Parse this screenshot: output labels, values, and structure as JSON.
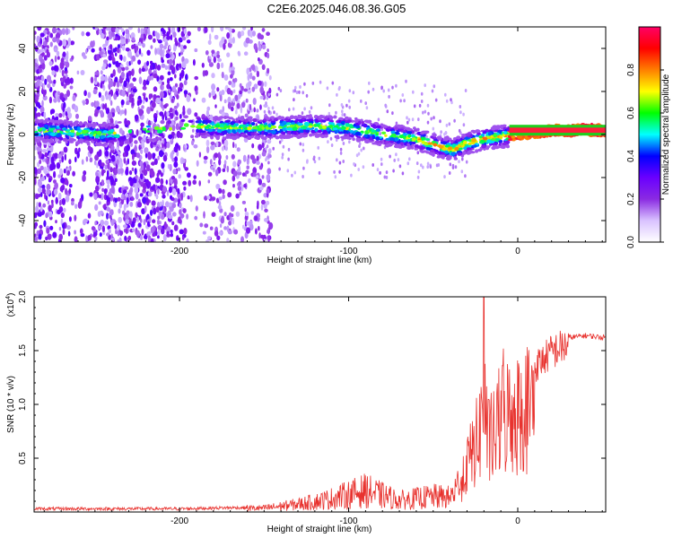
{
  "page": {
    "title": "C2E6.2025.046.08.36.G05"
  },
  "chart_data": [
    {
      "type": "heatmap",
      "xlabel": "Height of straight line (km)",
      "ylabel": "Frequency (Hz)",
      "xlim": [
        -286,
        52
      ],
      "ylim": [
        -50,
        50
      ],
      "xticks": [
        -200,
        -100,
        0
      ],
      "yticks": [
        -40,
        -20,
        0,
        20,
        40
      ],
      "colorbar": {
        "label": "Normalized spectral amplitude",
        "range": [
          0,
          1
        ],
        "ticks": [
          "0.0",
          "0.2",
          "0.4",
          "0.6",
          "0.8"
        ],
        "colors": [
          "#ffffff",
          "#d9c2ff",
          "#8a2be2",
          "#6a00ff",
          "#0000ff",
          "#00ffff",
          "#00ff00",
          "#ffff00",
          "#ff7f00",
          "#ff0000",
          "#ff0066"
        ]
      },
      "ridge": {
        "x": [
          -286,
          -260,
          -245,
          -190,
          -170,
          -150,
          -120,
          -100,
          -80,
          -60,
          -45,
          -38,
          -30,
          -20,
          -10,
          0,
          20,
          52
        ],
        "frequency": [
          2,
          1,
          0,
          4,
          3,
          3,
          4,
          3,
          0,
          -2,
          -6,
          -7,
          -4,
          -2,
          -1,
          0,
          2,
          2
        ]
      }
    },
    {
      "type": "line",
      "xlabel": "Height of straight line (km)",
      "ylabel": "SNR (10 * v/v)",
      "multiplier_label": "(x10",
      "multiplier_exp": "4",
      "multiplier_close": ")",
      "xlim": [
        -286,
        52
      ],
      "ylim": [
        0,
        2.0
      ],
      "xticks": [
        -200,
        -100,
        0
      ],
      "yticks": [
        "0.5",
        "1.0",
        "1.5",
        "2.0"
      ],
      "color": "#e8322e",
      "series": [
        {
          "x": [
            -286,
            -240,
            -200,
            -170,
            -150,
            -130,
            -115,
            -100,
            -90,
            -80,
            -70,
            -60,
            -50,
            -40,
            -34,
            -30,
            -25,
            -22,
            -20,
            -18,
            -15,
            -10,
            -5,
            0,
            10,
            20,
            30,
            40,
            52
          ],
          "y": [
            0.03,
            0.03,
            0.03,
            0.04,
            0.04,
            0.08,
            0.12,
            0.18,
            0.22,
            0.17,
            0.12,
            0.14,
            0.16,
            0.15,
            0.3,
            0.6,
            0.85,
            1.05,
            1.6,
            0.9,
            0.9,
            1.2,
            1.25,
            1.25,
            1.4,
            1.55,
            1.62,
            1.64,
            1.62
          ]
        }
      ]
    }
  ]
}
